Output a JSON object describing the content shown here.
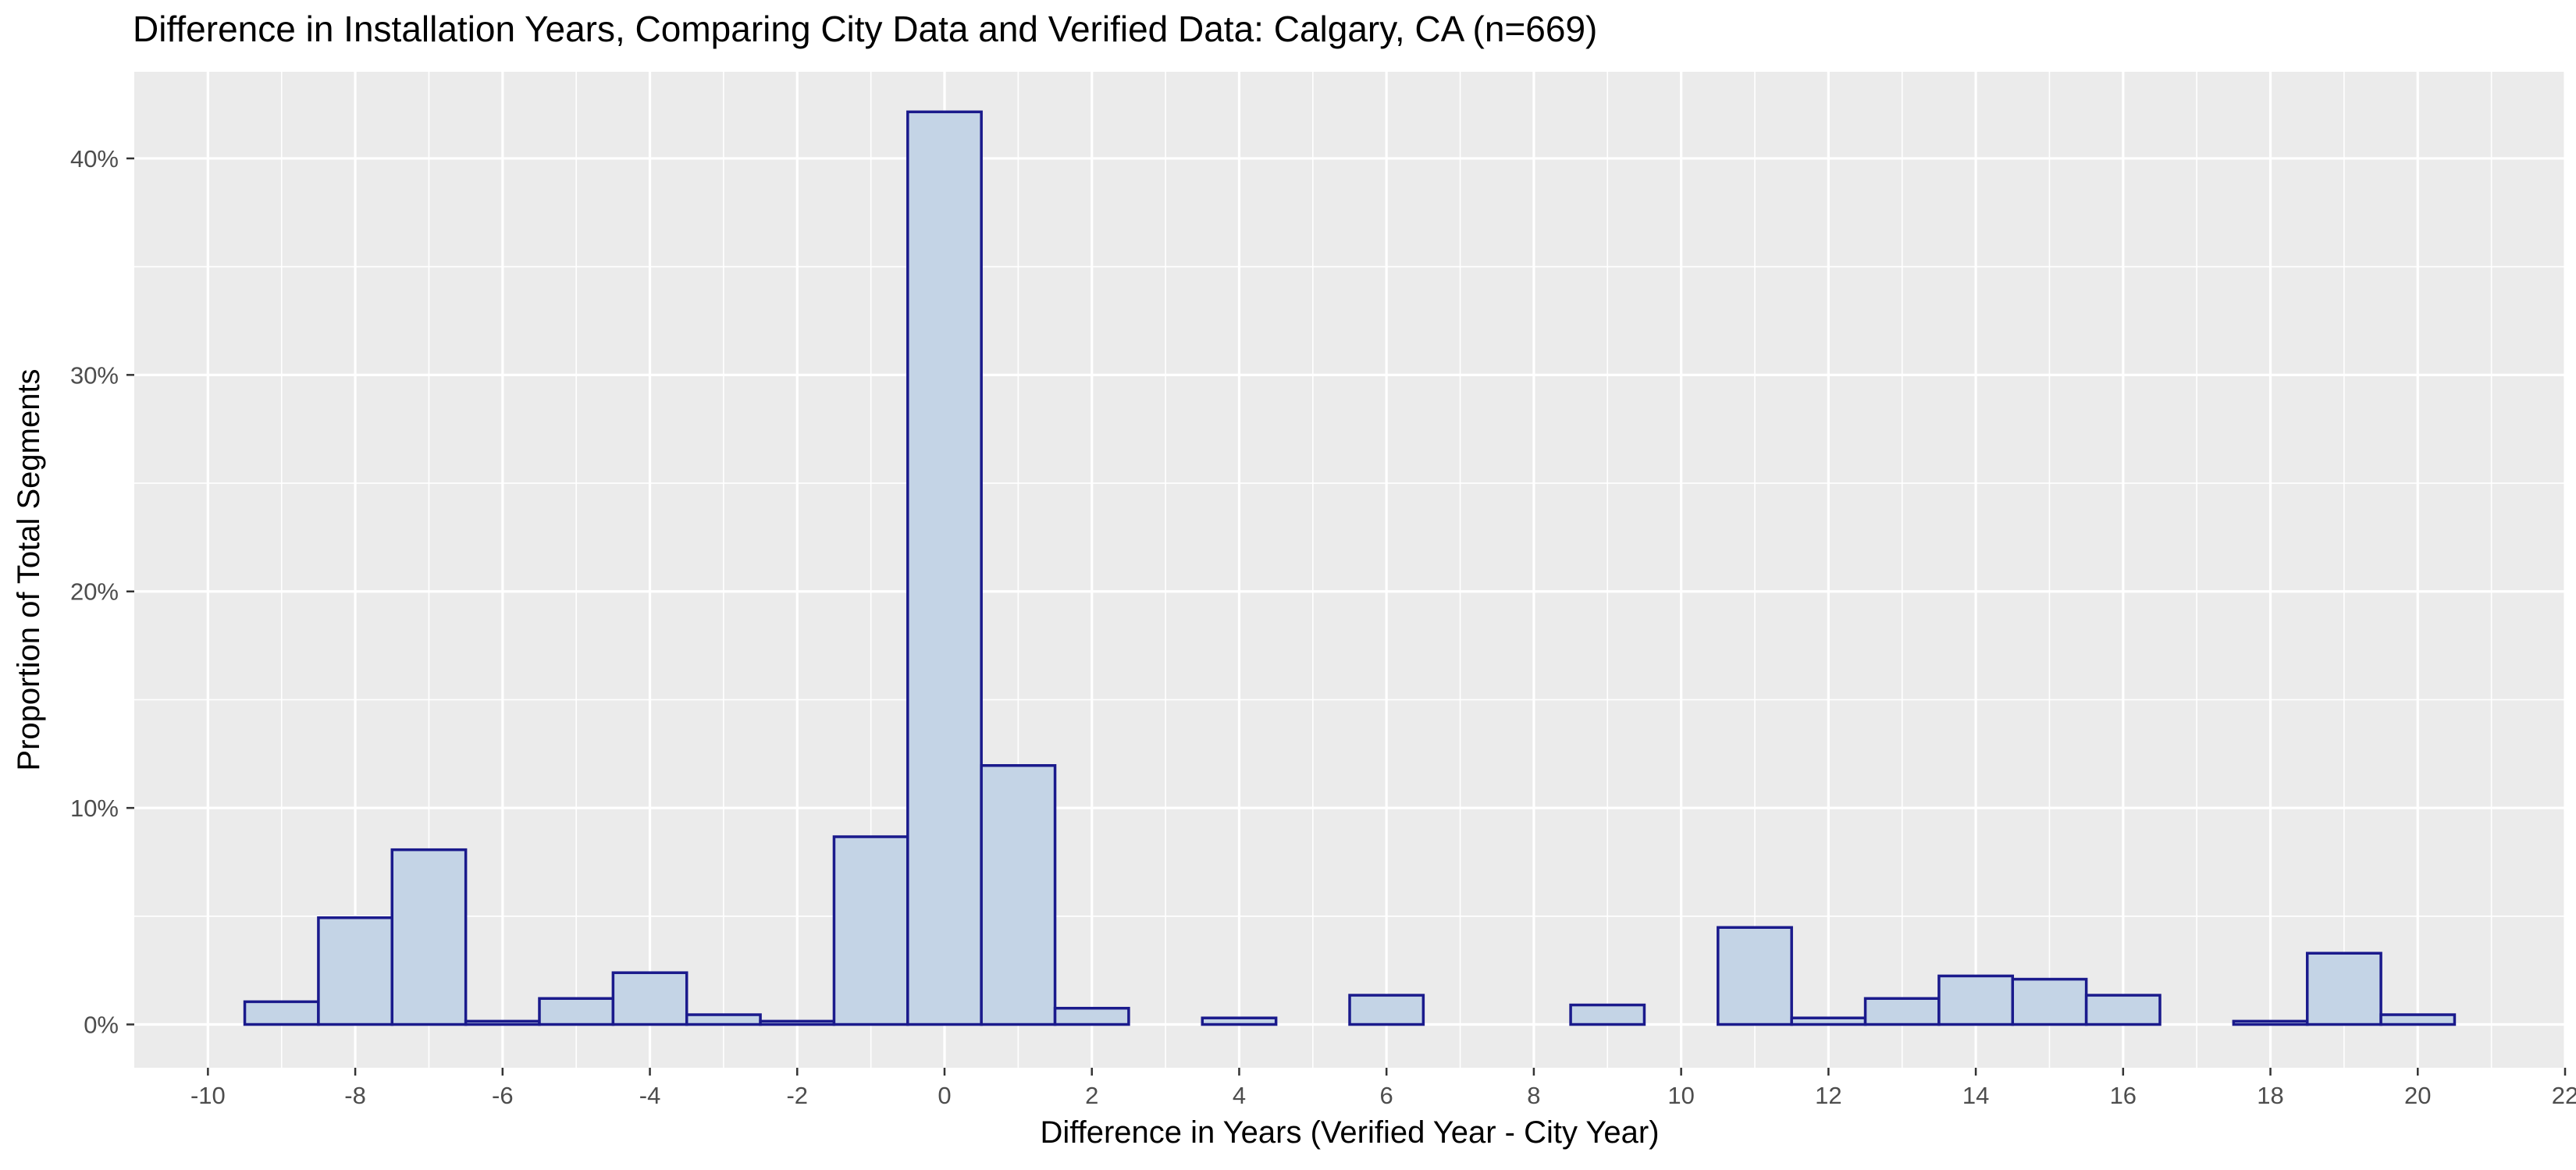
{
  "chart_data": {
    "type": "bar",
    "title": "Difference in Installation Years, Comparing City Data and Verified Data: Calgary, CA (n=669)",
    "xlabel": "Difference in Years (Verified Year - City Year)",
    "ylabel": "Proportion of Total Segments",
    "xlim": [
      -11,
      22
    ],
    "ylim": [
      -0.02,
      0.44
    ],
    "x_ticks": [
      -10,
      -8,
      -6,
      -4,
      -2,
      0,
      2,
      4,
      6,
      8,
      10,
      12,
      14,
      16,
      18,
      20,
      22
    ],
    "x_tick_labels": [
      "-10",
      "-8",
      "-6",
      "-4",
      "-2",
      "0",
      "2",
      "4",
      "6",
      "8",
      "10",
      "12",
      "14",
      "16",
      "18",
      "20",
      "22"
    ],
    "y_ticks": [
      0,
      0.1,
      0.2,
      0.3,
      0.4
    ],
    "y_tick_labels": [
      "0%",
      "10%",
      "20%",
      "30%",
      "40%"
    ],
    "bin_width": 1,
    "x": [
      -9,
      -8,
      -7,
      -6,
      -5,
      -4,
      -3,
      -2,
      -1,
      0,
      1,
      2,
      4,
      6,
      9,
      11,
      12,
      13,
      14,
      15,
      16,
      18,
      19,
      20
    ],
    "values": [
      0.0105,
      0.0493,
      0.0807,
      0.0015,
      0.012,
      0.0239,
      0.0045,
      0.0015,
      0.0867,
      0.4215,
      0.1196,
      0.0075,
      0.003,
      0.0135,
      0.009,
      0.0448,
      0.003,
      0.012,
      0.0224,
      0.0209,
      0.0135,
      0.0015,
      0.0329,
      0.0045
    ],
    "grid": true,
    "legend": "none",
    "colors": {
      "panel_background": "#EBEBEB",
      "grid_major": "#FFFFFF",
      "bar_fill": "#C4D4E6",
      "bar_outline": "#1A1A8C",
      "tick_text": "#4D4D4D",
      "axis_title_text": "#000000"
    }
  }
}
